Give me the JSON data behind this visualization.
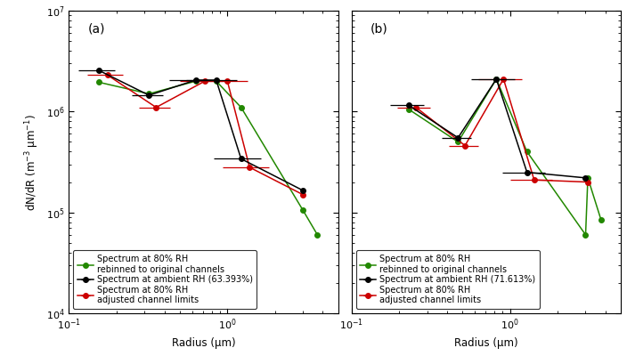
{
  "panels": [
    {
      "label": "(a)",
      "rh_label": "Spectrum at ambient RH (63.393%)",
      "black_x": [
        0.155,
        0.32,
        0.63,
        0.85,
        1.22,
        3.0
      ],
      "black_y": [
        2550000.0,
        1450000.0,
        2050000.0,
        2050000.0,
        340000.0,
        165000.0
      ],
      "black_xerr_lo": [
        0.04,
        0.07,
        0.2,
        0.3,
        0.4,
        0.001
      ],
      "black_xerr_hi": [
        0.04,
        0.07,
        0.2,
        0.3,
        0.4,
        0.001
      ],
      "red_x": [
        0.175,
        0.355,
        0.72,
        1.0,
        1.38,
        3.0
      ],
      "red_y": [
        2300000.0,
        1100000.0,
        2000000.0,
        2000000.0,
        280000.0,
        150000.0
      ],
      "red_xerr_lo": [
        0.045,
        0.08,
        0.22,
        0.35,
        0.45,
        0.001
      ],
      "red_xerr_hi": [
        0.045,
        0.08,
        0.22,
        0.35,
        0.45,
        0.001
      ],
      "green_x": [
        0.155,
        0.32,
        0.63,
        0.85,
        1.22,
        3.0,
        3.7
      ],
      "green_y": [
        1950000.0,
        1500000.0,
        2000000.0,
        2000000.0,
        1100000.0,
        105000.0,
        60000.0
      ]
    },
    {
      "label": "(b)",
      "rh_label": "Spectrum at ambient RH (71.613%)",
      "black_x": [
        0.23,
        0.47,
        0.82,
        1.28,
        3.0
      ],
      "black_y": [
        1150000.0,
        550000.0,
        2100000.0,
        250000.0,
        220000.0
      ],
      "black_xerr_lo": [
        0.055,
        0.1,
        0.25,
        0.38,
        0.001
      ],
      "black_xerr_hi": [
        0.055,
        0.1,
        0.25,
        0.38,
        0.001
      ],
      "red_x": [
        0.255,
        0.52,
        0.91,
        1.42,
        3.1
      ],
      "red_y": [
        1100000.0,
        460000.0,
        2100000.0,
        210000.0,
        200000.0
      ],
      "red_xerr_lo": [
        0.06,
        0.11,
        0.28,
        0.42,
        0.001
      ],
      "red_xerr_hi": [
        0.06,
        0.11,
        0.28,
        0.42,
        0.001
      ],
      "green_x": [
        0.23,
        0.47,
        0.82,
        1.28,
        3.0,
        3.1,
        3.75
      ],
      "green_y": [
        1050000.0,
        500000.0,
        2100000.0,
        400000.0,
        60000.0,
        220000.0,
        85000.0
      ]
    }
  ],
  "color_black": "#000000",
  "color_red": "#cc0000",
  "color_green": "#228800",
  "ylim": [
    10000.0,
    10000000.0
  ],
  "xlim": [
    0.1,
    5
  ],
  "ylabel": "dN/dR (m$^{-3}$ μm$^{-1}$)",
  "xlabel": "Radius (μm)",
  "legend_line2a": "Spectrum at 80% RH\nadjusted channel limits",
  "legend_line3a": "Spectrum at 80% RH\nrebinned to original channels"
}
